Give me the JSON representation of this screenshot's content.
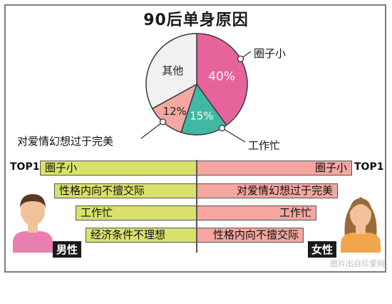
{
  "title": "90后单身原因",
  "chart_data": {
    "type": "pie",
    "title": "90后单身原因",
    "slices": [
      {
        "label": "圈子小",
        "value": 40,
        "value_label": "40%",
        "color": "#e6639c"
      },
      {
        "label": "工作忙",
        "value": 15,
        "value_label": "15%",
        "color": "#41b8a3"
      },
      {
        "label": "对爱情幻想过于完美",
        "value": 12,
        "value_label": "12%",
        "color": "#f4a8a1"
      },
      {
        "label": "其他",
        "value": 33,
        "value_label": "",
        "color": "#f2f0f0"
      }
    ]
  },
  "ranking": {
    "top_label": "TOP1",
    "male": {
      "label": "男性",
      "items": [
        "圈子小",
        "性格内向不擅交际",
        "工作忙",
        "经济条件不理想"
      ]
    },
    "female": {
      "label": "女性",
      "items": [
        "圈子小",
        "对爱情幻想过于完美",
        "工作忙",
        "性格内向不擅交际"
      ]
    },
    "colors": {
      "male_bar": "#d8e26a",
      "female_bar": "#f5a6a0"
    }
  },
  "watermark": "图片出自珍爱网"
}
